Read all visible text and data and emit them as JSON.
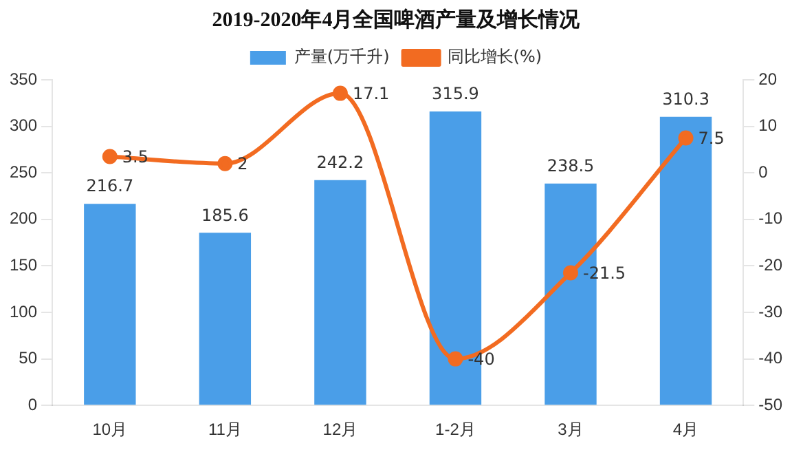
{
  "chart_data": {
    "type": "bar",
    "title": "2019-2020年4月全国啤酒产量及增长情况",
    "categories": [
      "10月",
      "11月",
      "12月",
      "1-2月",
      "3月",
      "4月"
    ],
    "series": [
      {
        "name": "产量(万千升)",
        "color": "#4a9ee8",
        "values": [
          216.7,
          185.6,
          242.2,
          315.9,
          238.5,
          310.3
        ]
      },
      {
        "name": "同比增长(%)",
        "type": "line",
        "axis": "y2",
        "color": "#f26b21",
        "values": [
          3.5,
          2,
          17.1,
          -40,
          -21.5,
          7.5
        ]
      }
    ],
    "ylim": [
      0,
      350
    ],
    "yticks": [
      0,
      50,
      100,
      150,
      200,
      250,
      300,
      350
    ],
    "y2lim": [
      -50,
      20
    ],
    "y2ticks": [
      -50,
      -40,
      -30,
      -20,
      -10,
      0,
      10,
      20
    ],
    "data_labels": true,
    "legend": "top",
    "grid": false,
    "marker": "circle",
    "line_style": "solid"
  }
}
